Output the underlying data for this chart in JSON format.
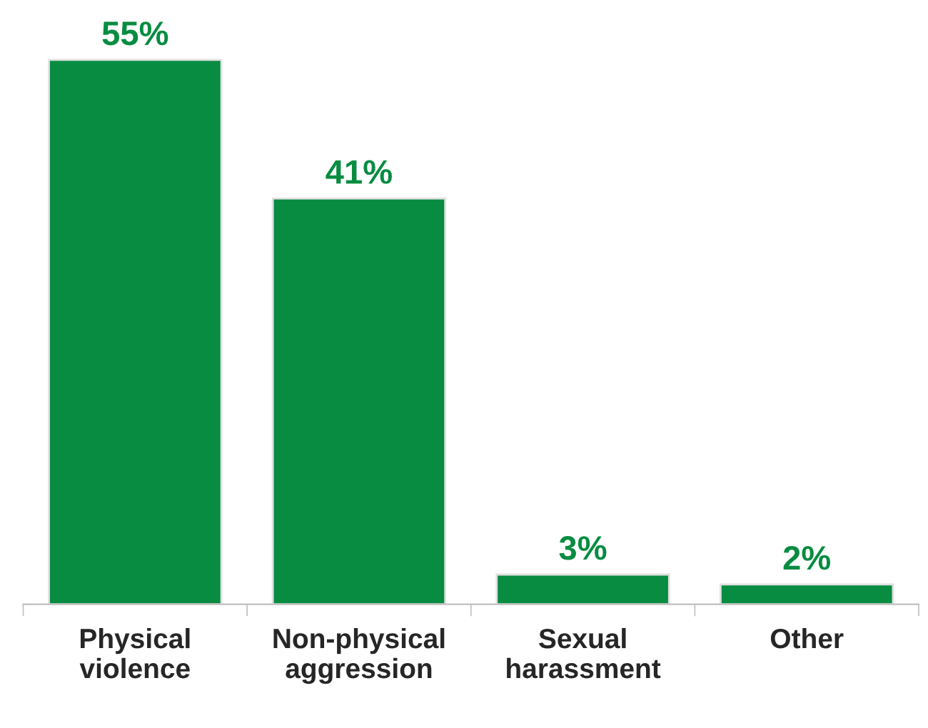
{
  "chart_data": {
    "type": "bar",
    "categories": [
      "Physical\nviolence",
      "Non-physical\naggression",
      "Sexual\nharassment",
      "Other"
    ],
    "values": [
      55,
      41,
      3,
      2
    ],
    "value_labels": [
      "55%",
      "41%",
      "3%",
      "2%"
    ],
    "color": "#078c41",
    "grid": false,
    "legend": false
  }
}
